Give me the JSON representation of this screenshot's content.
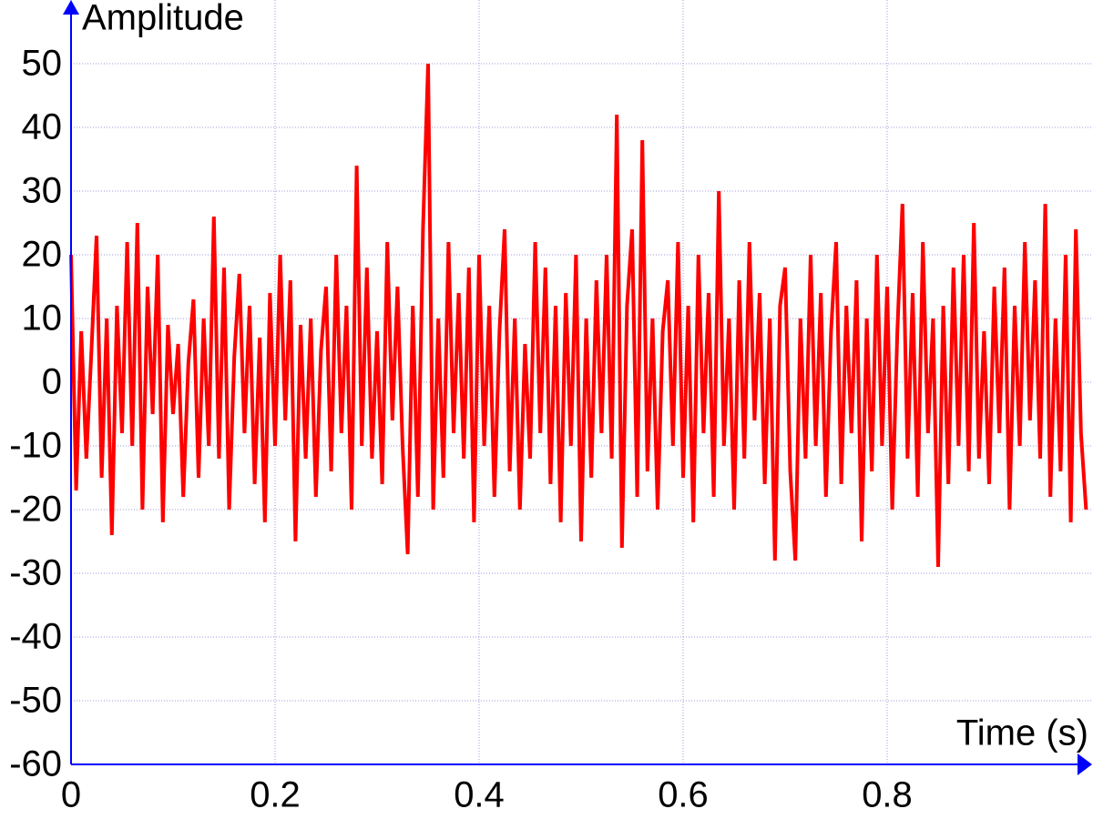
{
  "chart_data": {
    "type": "line",
    "x_label": "Time (s)",
    "y_label": "Amplitude",
    "color": "#ff0000",
    "axis_color": "#0000ff",
    "grid": true,
    "xlim": [
      0,
      1
    ],
    "ylim": [
      -60,
      60
    ],
    "xticks": [
      0,
      0.2,
      0.4,
      0.6,
      0.8
    ],
    "yticks": [
      -60,
      -50,
      -40,
      -30,
      -20,
      -10,
      0,
      10,
      20,
      30,
      40,
      50
    ],
    "x": [
      0,
      0.005,
      0.01,
      0.015,
      0.02,
      0.025,
      0.03,
      0.035,
      0.04,
      0.045,
      0.05,
      0.055,
      0.06,
      0.065,
      0.07,
      0.075,
      0.08,
      0.085,
      0.09,
      0.095,
      0.1,
      0.105,
      0.11,
      0.115,
      0.12,
      0.125,
      0.13,
      0.135,
      0.14,
      0.145,
      0.15,
      0.155,
      0.16,
      0.165,
      0.17,
      0.175,
      0.18,
      0.185,
      0.19,
      0.195,
      0.2,
      0.205,
      0.21,
      0.215,
      0.22,
      0.225,
      0.23,
      0.235,
      0.24,
      0.245,
      0.25,
      0.255,
      0.26,
      0.265,
      0.27,
      0.275,
      0.28,
      0.285,
      0.29,
      0.295,
      0.3,
      0.305,
      0.31,
      0.315,
      0.32,
      0.325,
      0.33,
      0.335,
      0.34,
      0.345,
      0.35,
      0.355,
      0.36,
      0.365,
      0.37,
      0.375,
      0.38,
      0.385,
      0.39,
      0.395,
      0.4,
      0.405,
      0.41,
      0.415,
      0.42,
      0.425,
      0.43,
      0.435,
      0.44,
      0.445,
      0.45,
      0.455,
      0.46,
      0.465,
      0.47,
      0.475,
      0.48,
      0.485,
      0.49,
      0.495,
      0.5,
      0.505,
      0.51,
      0.515,
      0.52,
      0.525,
      0.53,
      0.535,
      0.54,
      0.545,
      0.55,
      0.555,
      0.56,
      0.565,
      0.57,
      0.575,
      0.58,
      0.585,
      0.59,
      0.595,
      0.6,
      0.605,
      0.61,
      0.615,
      0.62,
      0.625,
      0.63,
      0.635,
      0.64,
      0.645,
      0.65,
      0.655,
      0.66,
      0.665,
      0.67,
      0.675,
      0.68,
      0.685,
      0.69,
      0.695,
      0.7,
      0.705,
      0.71,
      0.715,
      0.72,
      0.725,
      0.73,
      0.735,
      0.74,
      0.745,
      0.75,
      0.755,
      0.76,
      0.765,
      0.77,
      0.775,
      0.78,
      0.785,
      0.79,
      0.795,
      0.8,
      0.805,
      0.81,
      0.815,
      0.82,
      0.825,
      0.83,
      0.835,
      0.84,
      0.845,
      0.85,
      0.855,
      0.86,
      0.865,
      0.87,
      0.875,
      0.88,
      0.885,
      0.89,
      0.895,
      0.9,
      0.905,
      0.91,
      0.915,
      0.92,
      0.925,
      0.93,
      0.935,
      0.94,
      0.945,
      0.95,
      0.955,
      0.96,
      0.965,
      0.97,
      0.975,
      0.98,
      0.985,
      0.99,
      0.995
    ],
    "values": [
      20,
      -17,
      8,
      -12,
      5,
      23,
      -15,
      10,
      -24,
      12,
      -8,
      22,
      -10,
      25,
      -20,
      15,
      -5,
      20,
      -22,
      9,
      -5,
      6,
      -18,
      3,
      13,
      -15,
      10,
      -10,
      26,
      -12,
      18,
      -20,
      4,
      17,
      -8,
      12,
      -16,
      7,
      -22,
      14,
      -10,
      20,
      -6,
      16,
      -25,
      9,
      -12,
      10,
      -18,
      5,
      15,
      -14,
      20,
      -8,
      12,
      -20,
      34,
      -10,
      18,
      -12,
      8,
      -16,
      22,
      -6,
      15,
      -10,
      -27,
      12,
      -18,
      24,
      50,
      -20,
      10,
      -15,
      22,
      -8,
      14,
      -12,
      18,
      -22,
      20,
      -10,
      12,
      -18,
      8,
      24,
      -14,
      10,
      -20,
      6,
      -12,
      22,
      -8,
      18,
      -16,
      12,
      -22,
      14,
      -10,
      20,
      -25,
      10,
      -15,
      16,
      -8,
      20,
      -12,
      42,
      -26,
      12,
      24,
      -18,
      38,
      -14,
      10,
      -20,
      8,
      16,
      -10,
      22,
      -15,
      12,
      -22,
      20,
      -8,
      14,
      -18,
      30,
      -10,
      10,
      -20,
      16,
      -12,
      22,
      -6,
      14,
      -16,
      10,
      -28,
      12,
      18,
      -14,
      -28,
      10,
      -12,
      20,
      -10,
      14,
      -18,
      8,
      22,
      -16,
      12,
      -8,
      16,
      -25,
      10,
      -14,
      20,
      -10,
      15,
      -20,
      8,
      28,
      -12,
      14,
      -18,
      22,
      -8,
      10,
      -29,
      12,
      -16,
      18,
      -10,
      20,
      -14,
      25,
      -12,
      8,
      -16,
      15,
      -8,
      18,
      -20,
      12,
      -10,
      22,
      -6,
      16,
      -12,
      28,
      -18,
      10,
      -14,
      20,
      -22,
      24,
      -8,
      -20
    ]
  }
}
